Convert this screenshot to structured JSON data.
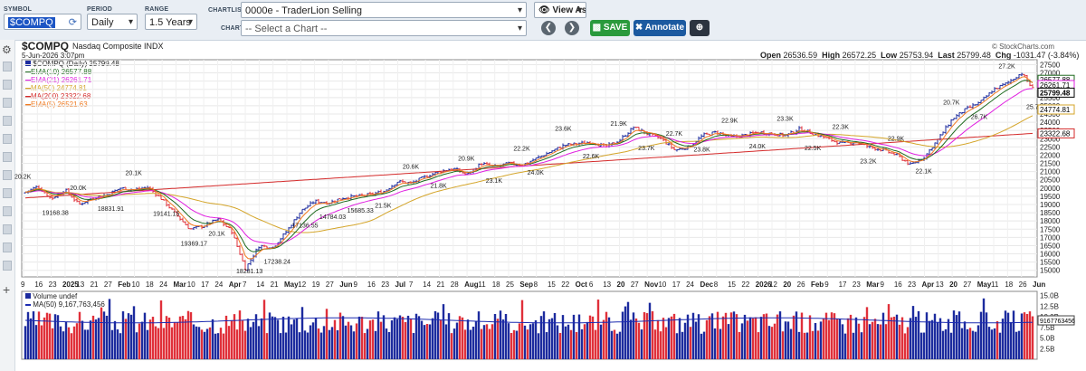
{
  "toolbar": {
    "symbol_label": "SYMBOL",
    "symbol_value": "$COMPQ",
    "period_label": "PERIOD",
    "period_value": "Daily",
    "range_label": "RANGE",
    "range_value": "1.5 Years",
    "chartlist_label": "CHARTLIST",
    "chartlist_value": "0000e - TraderLion Selling",
    "chart_label": "CHART",
    "chart_placeholder": "-- Select a Chart --",
    "view_as": "View As",
    "save": "SAVE",
    "annotate": "Annotate"
  },
  "header": {
    "symbol": "$COMPQ",
    "name": "Nasdaq Composite  INDX",
    "date": "5-Jun-2026 3:07pm",
    "source": "© StockCharts.com",
    "open_label": "Open",
    "open": "26536.59",
    "high_label": "High",
    "high": "26572.25",
    "low_label": "Low",
    "low": "25753.94",
    "last_label": "Last",
    "last": "25799.48",
    "chg_label": "Chg",
    "chg": "-1031.47 (-3.84%)"
  },
  "legend": {
    "main": "$COMPQ (Daily) 25799.48",
    "items": [
      {
        "text": "EMA(10) 26577.88",
        "color": "#1f6b1f"
      },
      {
        "text": "EMA(21) 26261.71",
        "color": "#e020e0"
      },
      {
        "text": "MA(50) 24774.81",
        "color": "#d4a52a"
      },
      {
        "text": "MA(200) 23322.68",
        "color": "#d42a2a"
      },
      {
        "text": "EMA(5) 26521.63",
        "color": "#f07a20"
      }
    ]
  },
  "volume": {
    "title": "Volume undef",
    "ma": "MA(50) 9,167,763,456",
    "ma_tag": "9167763456"
  },
  "colors": {
    "up": "#1c2b9e",
    "down": "#e0303a",
    "ema10": "#1f6b1f",
    "ema21": "#e020e0",
    "ma50": "#d4a52a",
    "ma200": "#d42a2a",
    "ema5": "#f07a20",
    "volma": "#1c2bb0"
  },
  "chart_data": {
    "type": "line",
    "symbol": "$COMPQ",
    "x_tick_labels": [
      "9",
      "16",
      "23",
      "2025",
      "13",
      "21",
      "27",
      "Feb",
      "10",
      "18",
      "24",
      "Mar",
      "10",
      "17",
      "24",
      "Apr",
      "7",
      "14",
      "21",
      "May",
      "12",
      "19",
      "27",
      "Jun",
      "9",
      "16",
      "23",
      "Jul",
      "7",
      "14",
      "21",
      "28",
      "Aug",
      "11",
      "18",
      "25",
      "Sep",
      "8",
      "15",
      "22",
      "Oct",
      "6",
      "13",
      "20",
      "27",
      "Nov",
      "10",
      "17",
      "24",
      "Dec",
      "8",
      "15",
      "22",
      "2026",
      "12",
      "20",
      "26",
      "Feb",
      "9",
      "17",
      "23",
      "Mar",
      "9",
      "16",
      "23",
      "Apr",
      "13",
      "20",
      "27",
      "May",
      "11",
      "18",
      "26",
      "Jun"
    ],
    "y_ticks": [
      15000,
      15500,
      16000,
      16500,
      17000,
      17500,
      18000,
      18500,
      19000,
      19500,
      20000,
      20500,
      21000,
      21500,
      22000,
      22500,
      23000,
      23500,
      24000,
      24500,
      25000,
      25500,
      26000,
      26500,
      27000,
      27500
    ],
    "ylim": [
      14600,
      27800
    ],
    "price_points": [
      [
        "9",
        19700
      ],
      [
        "16",
        20100
      ],
      [
        "23",
        19350
      ],
      [
        "2025",
        19900
      ],
      [
        "13",
        19000
      ],
      [
        "21",
        19400
      ],
      [
        "27",
        19600
      ],
      [
        "Feb",
        20000
      ],
      [
        "10",
        19900
      ],
      [
        "18",
        20050
      ],
      [
        "24",
        19300
      ],
      [
        "Mar",
        18400
      ],
      [
        "10",
        17500
      ],
      [
        "17",
        17700
      ],
      [
        "24",
        18100
      ],
      [
        "Apr",
        17400
      ],
      [
        "7",
        15100
      ],
      [
        "14",
        16500
      ],
      [
        "21",
        16400
      ],
      [
        "May",
        17400
      ],
      [
        "12",
        18600
      ],
      [
        "19",
        19200
      ],
      [
        "27",
        19100
      ],
      [
        "Jun",
        19400
      ],
      [
        "9",
        19500
      ],
      [
        "16",
        19600
      ],
      [
        "23",
        19800
      ],
      [
        "Jul",
        20400
      ],
      [
        "7",
        20300
      ],
      [
        "14",
        20700
      ],
      [
        "21",
        21000
      ],
      [
        "28",
        21200
      ],
      [
        "Aug",
        20800
      ],
      [
        "11",
        21500
      ],
      [
        "18",
        21300
      ],
      [
        "25",
        21500
      ],
      [
        "Sep",
        21400
      ],
      [
        "8",
        21800
      ],
      [
        "15",
        22200
      ],
      [
        "22",
        22600
      ],
      [
        "Oct",
        22700
      ],
      [
        "6",
        22800
      ],
      [
        "13",
        22500
      ],
      [
        "20",
        22900
      ],
      [
        "27",
        23700
      ],
      [
        "Nov",
        23300
      ],
      [
        "10",
        23000
      ],
      [
        "17",
        22300
      ],
      [
        "24",
        22500
      ],
      [
        "Dec",
        23200
      ],
      [
        "8",
        23400
      ],
      [
        "15",
        23100
      ],
      [
        "22",
        23200
      ],
      [
        "2026",
        23400
      ],
      [
        "12",
        23300
      ],
      [
        "20",
        23200
      ],
      [
        "26",
        23600
      ],
      [
        "Feb",
        23300
      ],
      [
        "9",
        23000
      ],
      [
        "17",
        22700
      ],
      [
        "23",
        22800
      ],
      [
        "Mar",
        22500
      ],
      [
        "9",
        22300
      ],
      [
        "16",
        22000
      ],
      [
        "23",
        21400
      ],
      [
        "Apr",
        21900
      ],
      [
        "13",
        23000
      ],
      [
        "20",
        24200
      ],
      [
        "27",
        24800
      ],
      [
        "May",
        25200
      ],
      [
        "11",
        26000
      ],
      [
        "18",
        26400
      ],
      [
        "26",
        27000
      ],
      [
        "Jun",
        25799
      ]
    ],
    "annotations": [
      "20.2K",
      "19168.38",
      "20.0K",
      "18831.91",
      "20.1K",
      "19141.15",
      "19369.17",
      "20.1K",
      "18281.13",
      "17238.24",
      "17136.55",
      "14784.03",
      "15685.33",
      "21.5K",
      "20.6K",
      "21.8K",
      "20.9K",
      "23.1K",
      "22.2K",
      "24.0K",
      "23.6K",
      "22.6K",
      "21.9K",
      "23.7K",
      "22.7K",
      "23.8K",
      "22.9K",
      "24.0K",
      "23.3K",
      "22.5K",
      "22.3K",
      "23.2K",
      "22.9K",
      "22.1K",
      "20.7K",
      "26.7K",
      "27.2K",
      "25.7K"
    ],
    "series": [
      {
        "name": "EMA(10)",
        "last": 26577.88
      },
      {
        "name": "EMA(21)",
        "last": 26261.71
      },
      {
        "name": "MA(50)",
        "last": 24774.81
      },
      {
        "name": "MA(200)",
        "last": 23322.68
      },
      {
        "name": "EMA(5)",
        "last": 26521.63
      }
    ],
    "right_tags": [
      "26577.88",
      "26261.71",
      "25799.48",
      "24774.81",
      "23322.68"
    ],
    "volume_ticks": [
      "15.0B",
      "12.5B",
      "10.0B",
      "7.5B",
      "5.0B",
      "2.5B"
    ],
    "volume_ticks_values": [
      15,
      12.5,
      10,
      7.5,
      5,
      2.5
    ],
    "volume_ylim": [
      0,
      16
    ]
  }
}
